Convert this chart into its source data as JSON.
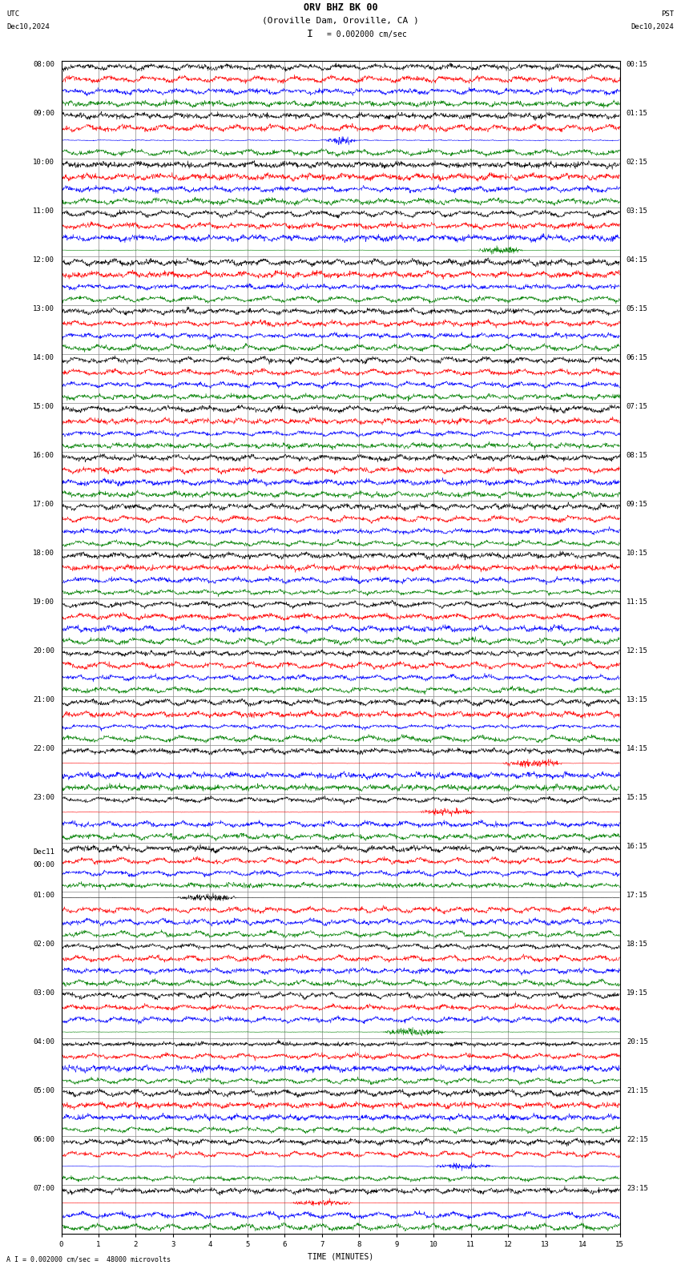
{
  "title_line1": "ORV BHZ BK 00",
  "title_line2": "(Oroville Dam, Oroville, CA )",
  "scale_label": "I = 0.002000 cm/sec",
  "bottom_label": "A I = 0.002000 cm/sec =  48000 microvolts",
  "utc_label": "UTC",
  "pst_label": "PST",
  "date_left": "Dec10,2024",
  "date_right": "Dec10,2024",
  "xlabel": "TIME (MINUTES)",
  "left_times": [
    "08:00",
    "09:00",
    "10:00",
    "11:00",
    "12:00",
    "13:00",
    "14:00",
    "15:00",
    "16:00",
    "17:00",
    "18:00",
    "19:00",
    "20:00",
    "21:00",
    "22:00",
    "23:00",
    "Dec11\n00:00",
    "01:00",
    "02:00",
    "03:00",
    "04:00",
    "05:00",
    "06:00",
    "07:00"
  ],
  "right_times": [
    "00:15",
    "01:15",
    "02:15",
    "03:15",
    "04:15",
    "05:15",
    "06:15",
    "07:15",
    "08:15",
    "09:15",
    "10:15",
    "11:15",
    "12:15",
    "13:15",
    "14:15",
    "15:15",
    "16:15",
    "17:15",
    "18:15",
    "19:15",
    "20:15",
    "21:15",
    "22:15",
    "23:15"
  ],
  "n_hours": 24,
  "traces_per_hour": 4,
  "n_points": 1800,
  "xmin": 0,
  "xmax": 15,
  "row_colors": [
    "black",
    "red",
    "blue",
    "green"
  ],
  "bg_color": "white",
  "grid_color": "#888888",
  "line_width": 0.4,
  "tick_fontsize": 6.5,
  "label_fontsize": 7,
  "title_fontsize": 8.5
}
